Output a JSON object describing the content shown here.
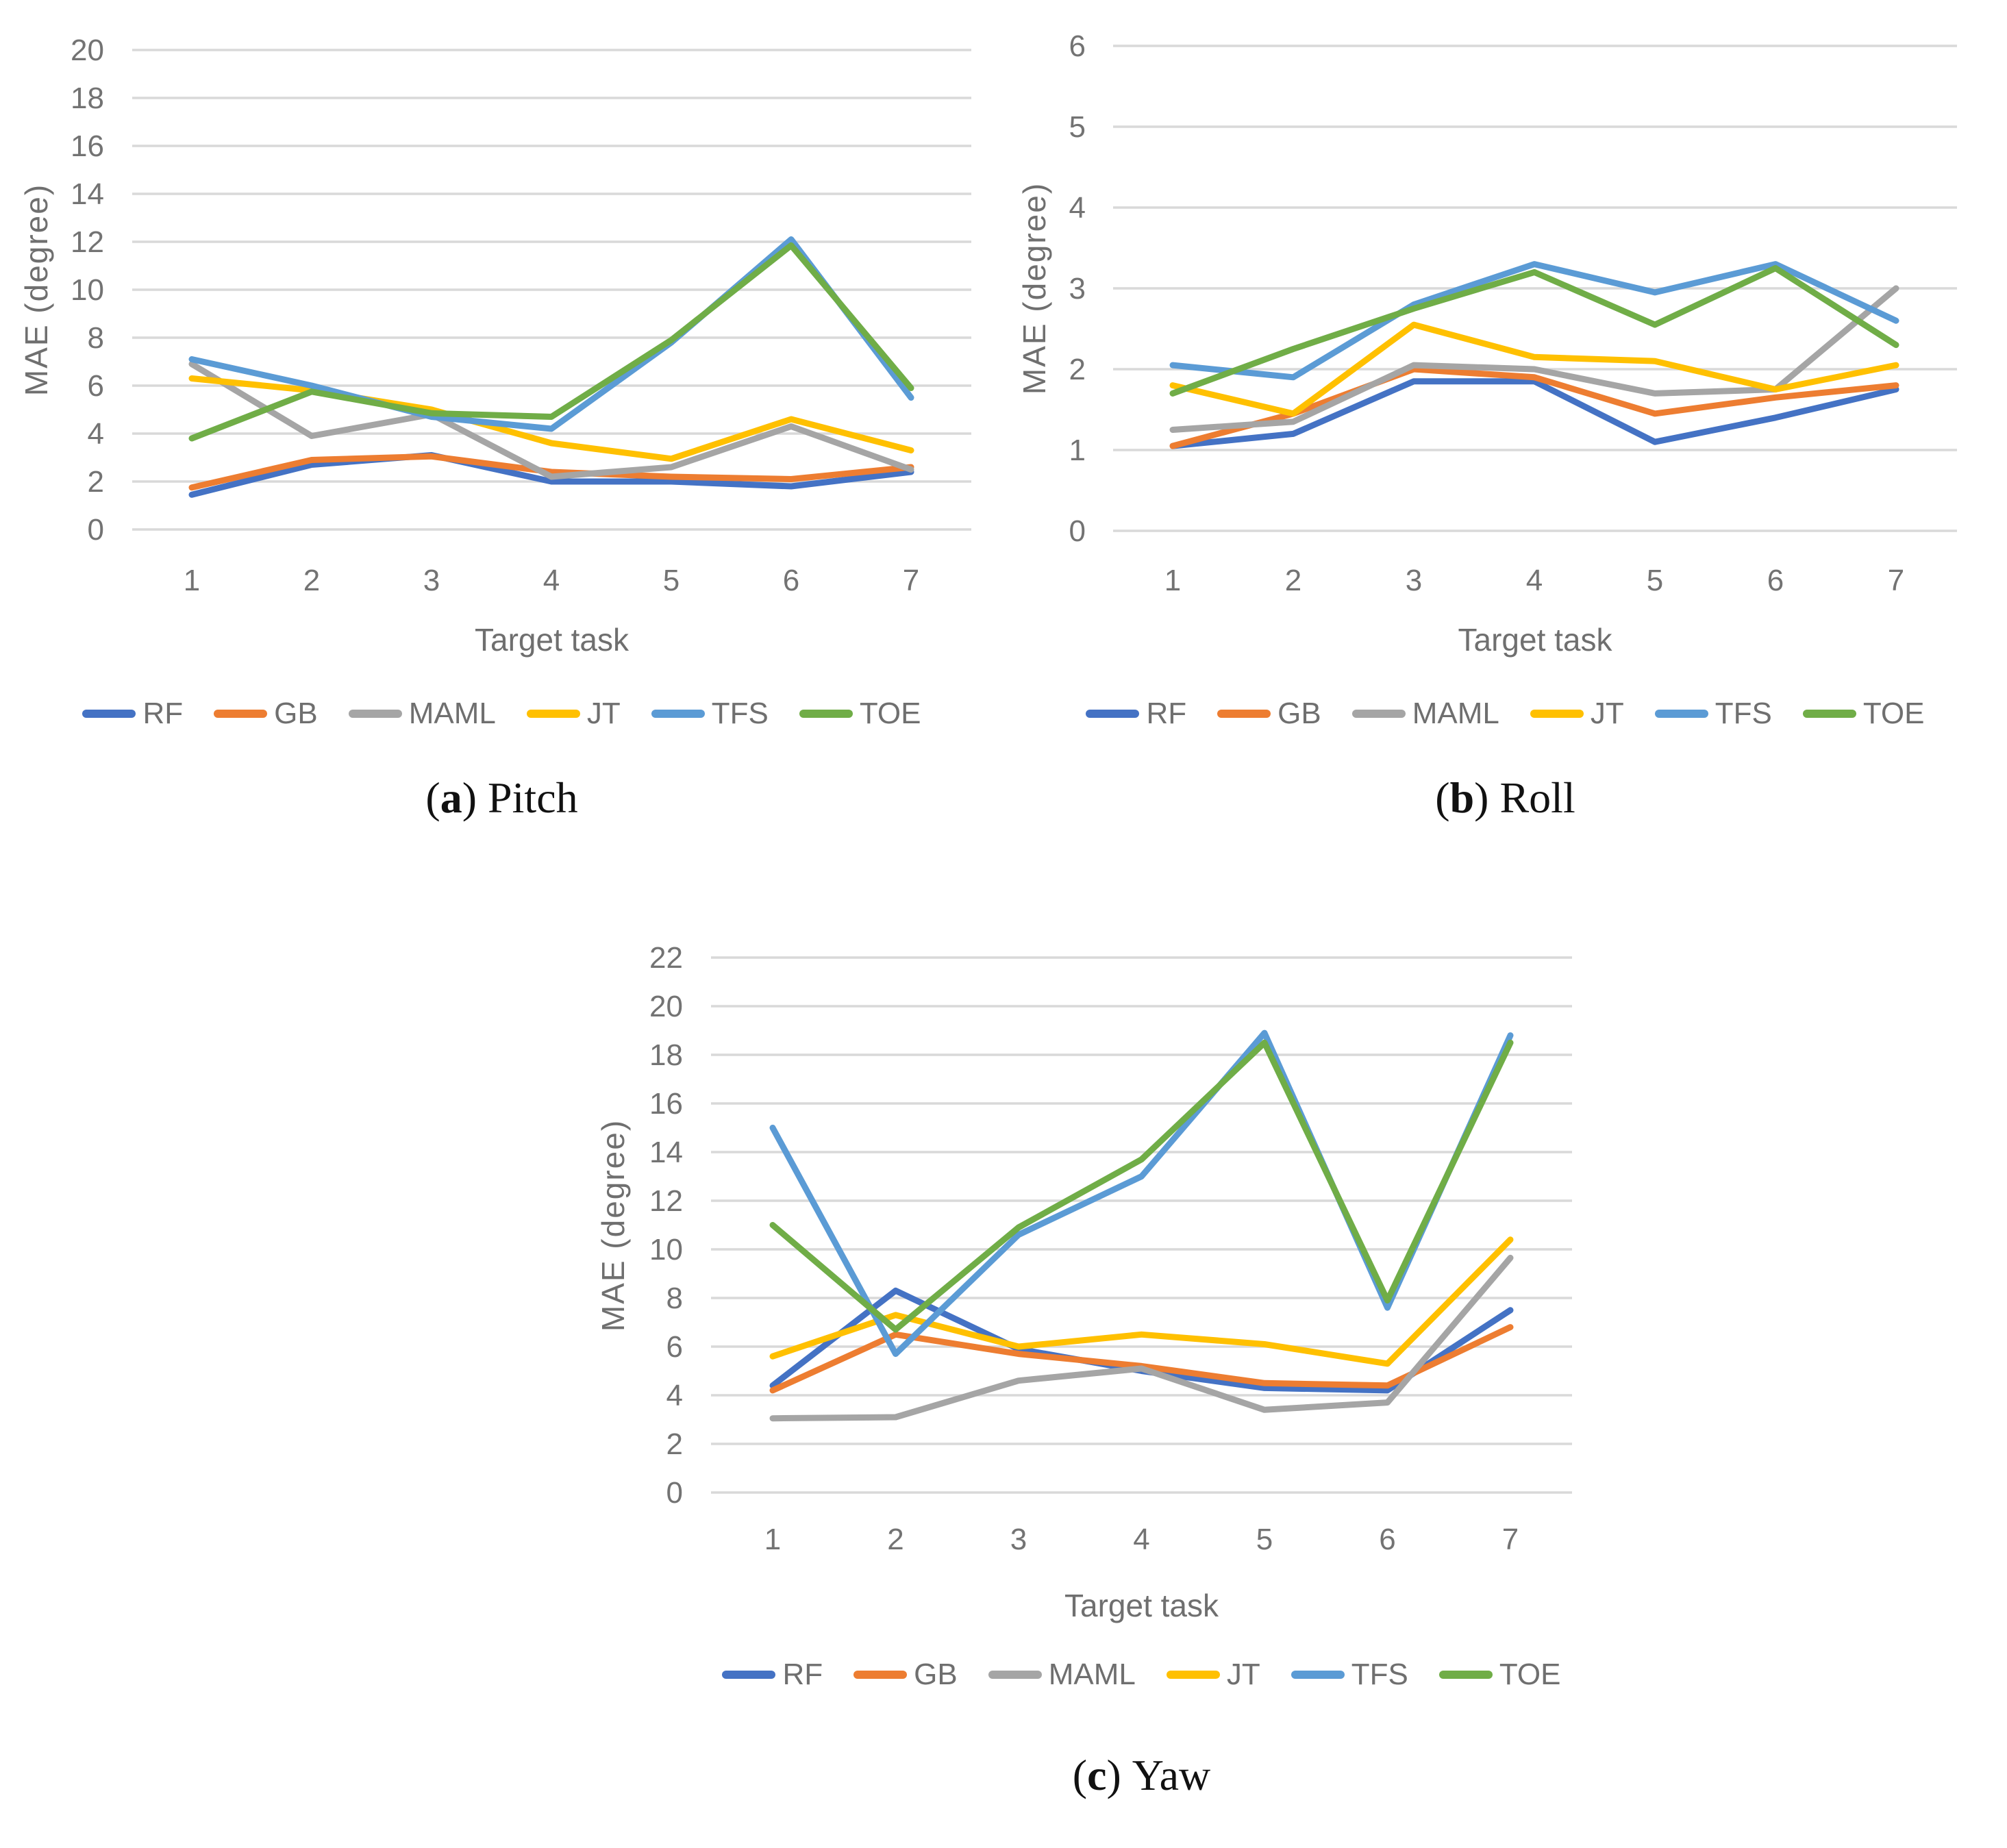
{
  "styles": {
    "grid_color": "#D9D9D9",
    "axis_text_color": "#737373",
    "title_text_color": "#6f6f6f",
    "caption_color": "#111111"
  },
  "chart_data": [
    {
      "type": "line",
      "caption": {
        "open": "(",
        "letter": "a",
        "close": ")",
        "label": "Pitch"
      },
      "xlabel": "Target task",
      "ylabel": "MAE (degree)",
      "x": [
        "1",
        "2",
        "3",
        "4",
        "5",
        "6",
        "7"
      ],
      "ylim": [
        0,
        20
      ],
      "ytick_step": 2,
      "grid": true,
      "legend_position": "bottom",
      "series": [
        {
          "name": "RF",
          "color": "#4472C4",
          "values": [
            1.45,
            2.7,
            3.1,
            2.0,
            2.0,
            1.8,
            2.4
          ]
        },
        {
          "name": "GB",
          "color": "#ED7D31",
          "values": [
            1.75,
            2.9,
            3.05,
            2.4,
            2.2,
            2.1,
            2.6
          ]
        },
        {
          "name": "MAML",
          "color": "#A5A5A5",
          "values": [
            6.9,
            3.9,
            4.8,
            2.2,
            2.6,
            4.3,
            2.5
          ]
        },
        {
          "name": "JT",
          "color": "#FFC000",
          "values": [
            6.3,
            5.8,
            5.0,
            3.6,
            2.95,
            4.6,
            3.3
          ]
        },
        {
          "name": "TFS",
          "color": "#5B9BD5",
          "values": [
            7.1,
            6.0,
            4.7,
            4.2,
            7.8,
            12.1,
            5.5
          ]
        },
        {
          "name": "TOE",
          "color": "#70AD47",
          "values": [
            3.8,
            5.75,
            4.85,
            4.7,
            7.9,
            11.85,
            5.9
          ]
        }
      ]
    },
    {
      "type": "line",
      "caption": {
        "open": "(",
        "letter": "b",
        "close": ")",
        "label": "Roll"
      },
      "xlabel": "Target task",
      "ylabel": "MAE (degree)",
      "x": [
        "1",
        "2",
        "3",
        "4",
        "5",
        "6",
        "7"
      ],
      "ylim": [
        0,
        6
      ],
      "ytick_step": 1,
      "grid": true,
      "legend_position": "bottom",
      "series": [
        {
          "name": "RF",
          "color": "#4472C4",
          "values": [
            1.05,
            1.2,
            1.85,
            1.85,
            1.1,
            1.4,
            1.75
          ]
        },
        {
          "name": "GB",
          "color": "#ED7D31",
          "values": [
            1.05,
            1.45,
            2.0,
            1.9,
            1.45,
            1.65,
            1.8
          ]
        },
        {
          "name": "MAML",
          "color": "#A5A5A5",
          "values": [
            1.25,
            1.35,
            2.05,
            2.0,
            1.7,
            1.75,
            3.0
          ]
        },
        {
          "name": "JT",
          "color": "#FFC000",
          "values": [
            1.8,
            1.45,
            2.55,
            2.15,
            2.1,
            1.75,
            2.05
          ]
        },
        {
          "name": "TFS",
          "color": "#5B9BD5",
          "values": [
            2.05,
            1.9,
            2.8,
            3.3,
            2.95,
            3.3,
            2.6
          ]
        },
        {
          "name": "TOE",
          "color": "#70AD47",
          "values": [
            1.7,
            2.25,
            2.75,
            3.2,
            2.55,
            3.25,
            2.3
          ]
        }
      ]
    },
    {
      "type": "line",
      "caption": {
        "open": "(",
        "letter": "c",
        "close": ")",
        "label": "Yaw"
      },
      "xlabel": "Target task",
      "ylabel": "MAE (degree)",
      "x": [
        "1",
        "2",
        "3",
        "4",
        "5",
        "6",
        "7"
      ],
      "ylim": [
        0,
        22
      ],
      "ytick_step": 2,
      "grid": true,
      "legend_position": "bottom",
      "series": [
        {
          "name": "RF",
          "color": "#4472C4",
          "values": [
            4.4,
            8.3,
            5.9,
            5.0,
            4.3,
            4.2,
            7.5
          ]
        },
        {
          "name": "GB",
          "color": "#ED7D31",
          "values": [
            4.2,
            6.5,
            5.7,
            5.2,
            4.5,
            4.4,
            6.8
          ]
        },
        {
          "name": "MAML",
          "color": "#A5A5A5",
          "values": [
            3.05,
            3.1,
            4.6,
            5.1,
            3.4,
            3.7,
            9.65
          ]
        },
        {
          "name": "JT",
          "color": "#FFC000",
          "values": [
            5.6,
            7.3,
            6.0,
            6.5,
            6.1,
            5.3,
            10.4
          ]
        },
        {
          "name": "TFS",
          "color": "#5B9BD5",
          "values": [
            15.0,
            5.7,
            10.6,
            13.0,
            18.9,
            7.6,
            18.8
          ]
        },
        {
          "name": "TOE",
          "color": "#70AD47",
          "values": [
            11.0,
            6.7,
            10.9,
            13.7,
            18.5,
            7.9,
            18.5
          ]
        }
      ]
    }
  ]
}
